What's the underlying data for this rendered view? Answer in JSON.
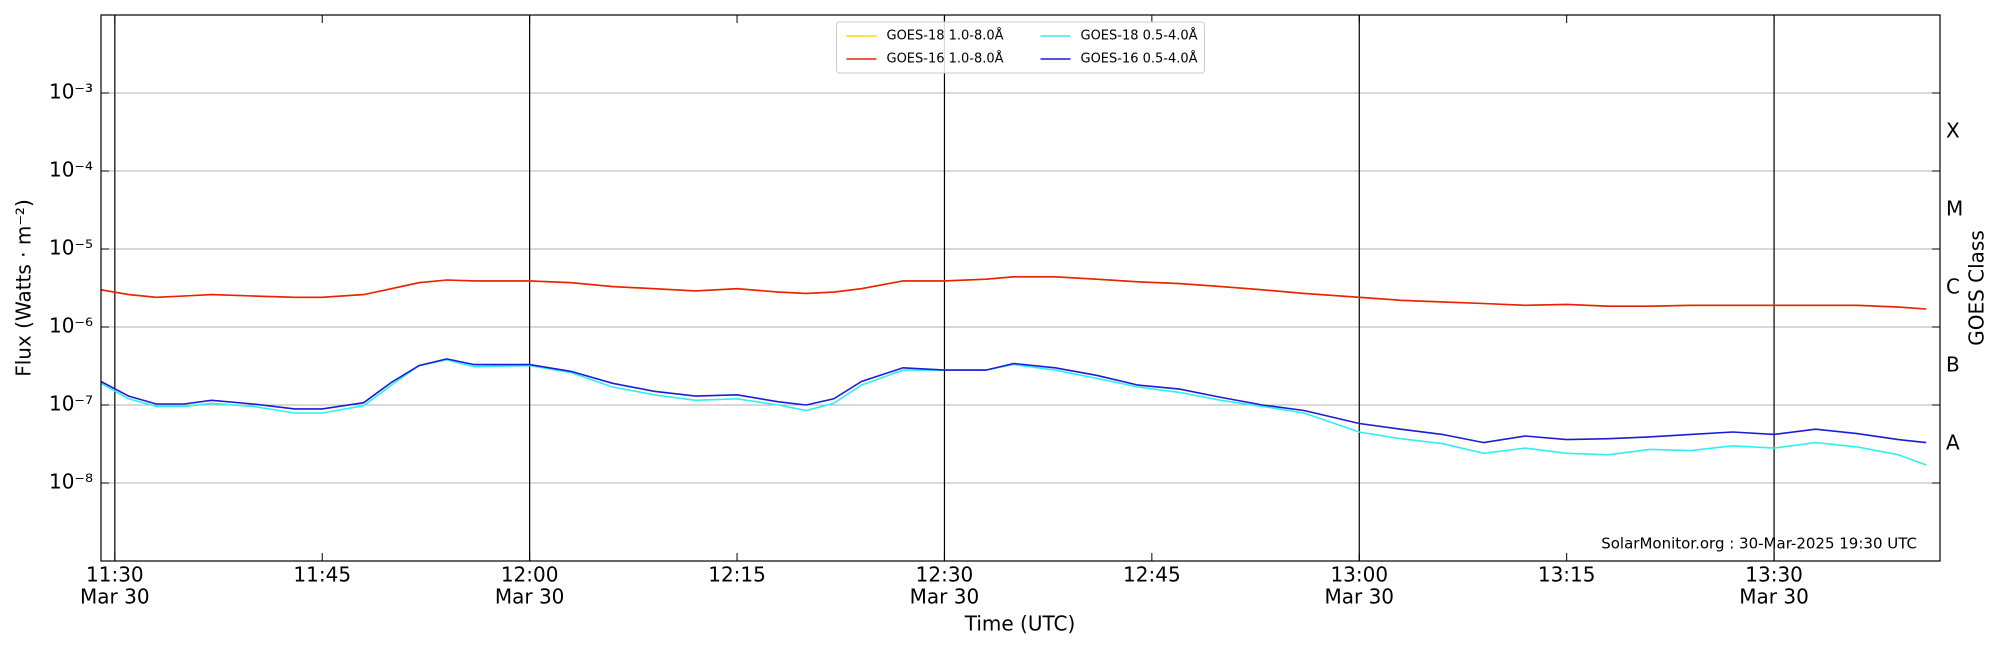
{
  "chart_data": {
    "type": "line",
    "xlabel": "Time (UTC)",
    "ylabel": "Flux (Watts · m⁻²)",
    "y2label": "GOES Class",
    "annotation": "SolarMonitor.org : 30-Mar-2025 19:30 UTC",
    "log_y": true,
    "grid": true,
    "legend": "upper center",
    "x": [
      "11:29",
      "11:31",
      "11:33",
      "11:35",
      "11:37",
      "11:40",
      "11:43",
      "11:45",
      "11:48",
      "11:50",
      "11:52",
      "11:54",
      "11:56",
      "12:00",
      "12:03",
      "12:06",
      "12:09",
      "12:12",
      "12:15",
      "12:18",
      "12:20",
      "12:22",
      "12:24",
      "12:27",
      "12:30",
      "12:33",
      "12:35",
      "12:38",
      "12:41",
      "12:44",
      "12:47",
      "12:50",
      "12:53",
      "12:56",
      "13:00",
      "13:03",
      "13:06",
      "13:09",
      "13:12",
      "13:15",
      "13:18",
      "13:21",
      "13:24",
      "13:27",
      "13:30",
      "13:33",
      "13:36",
      "13:39",
      "13:41"
    ],
    "xlim": [
      "11:29",
      "13:42"
    ],
    "xticks": [
      {
        "value": "11:30",
        "label": "11:30",
        "date": "Mar 30"
      },
      {
        "value": "11:45",
        "label": "11:45"
      },
      {
        "value": "12:00",
        "label": "12:00",
        "date": "Mar 30"
      },
      {
        "value": "12:15",
        "label": "12:15"
      },
      {
        "value": "12:30",
        "label": "12:30",
        "date": "Mar 30"
      },
      {
        "value": "12:45",
        "label": "12:45"
      },
      {
        "value": "13:00",
        "label": "13:00",
        "date": "Mar 30"
      },
      {
        "value": "13:15",
        "label": "13:15"
      },
      {
        "value": "13:30",
        "label": "13:30",
        "date": "Mar 30"
      }
    ],
    "ylim": [
      1e-09,
      0.01
    ],
    "yticks": [
      {
        "value": 1e-08,
        "label": "10⁻⁸"
      },
      {
        "value": 1e-07,
        "label": "10⁻⁷"
      },
      {
        "value": 1e-06,
        "label": "10⁻⁶"
      },
      {
        "value": 1e-05,
        "label": "10⁻⁵"
      },
      {
        "value": 0.0001,
        "label": "10⁻⁴"
      },
      {
        "value": 0.001,
        "label": "10⁻³"
      }
    ],
    "y2lim": [
      1e-09,
      0.01
    ],
    "y2ticks": [
      {
        "value": 3.16e-08,
        "label": "A"
      },
      {
        "value": 3.16e-07,
        "label": "B"
      },
      {
        "value": 3.16e-06,
        "label": "C"
      },
      {
        "value": 3.16e-05,
        "label": "M"
      },
      {
        "value": 0.000316,
        "label": "X"
      }
    ],
    "series": [
      {
        "name": "GOES-18 1.0-8.0Å",
        "color": "#ffd700",
        "values": [
          3e-06,
          2.6e-06,
          2.4e-06,
          2.5e-06,
          2.6e-06,
          2.5e-06,
          2.4e-06,
          2.4e-06,
          2.6e-06,
          3.1e-06,
          3.7e-06,
          4e-06,
          3.9e-06,
          3.9e-06,
          3.7e-06,
          3.3e-06,
          3.1e-06,
          2.9e-06,
          3.1e-06,
          2.8e-06,
          2.7e-06,
          2.8e-06,
          3.1e-06,
          3.9e-06,
          3.9e-06,
          4.1e-06,
          4.4e-06,
          4.4e-06,
          4.1e-06,
          3.8e-06,
          3.6e-06,
          3.3e-06,
          3e-06,
          2.7e-06,
          2.4e-06,
          2.2e-06,
          2.1e-06,
          2e-06,
          1.9e-06,
          1.95e-06,
          1.85e-06,
          1.85e-06,
          1.9e-06,
          1.9e-06,
          1.9e-06,
          1.9e-06,
          1.9e-06,
          1.8e-06,
          1.7e-06
        ]
      },
      {
        "name": "GOES-16 1.0-8.0Å",
        "color": "#e8200c",
        "values": [
          3e-06,
          2.6e-06,
          2.4e-06,
          2.5e-06,
          2.6e-06,
          2.5e-06,
          2.4e-06,
          2.4e-06,
          2.6e-06,
          3.1e-06,
          3.7e-06,
          4e-06,
          3.9e-06,
          3.9e-06,
          3.7e-06,
          3.3e-06,
          3.1e-06,
          2.9e-06,
          3.1e-06,
          2.8e-06,
          2.7e-06,
          2.8e-06,
          3.1e-06,
          3.9e-06,
          3.9e-06,
          4.1e-06,
          4.4e-06,
          4.4e-06,
          4.1e-06,
          3.8e-06,
          3.6e-06,
          3.3e-06,
          3e-06,
          2.7e-06,
          2.4e-06,
          2.2e-06,
          2.1e-06,
          2e-06,
          1.9e-06,
          1.95e-06,
          1.85e-06,
          1.85e-06,
          1.9e-06,
          1.9e-06,
          1.9e-06,
          1.9e-06,
          1.9e-06,
          1.8e-06,
          1.7e-06
        ]
      },
      {
        "name": "GOES-18 0.5-4.0Å",
        "color": "#2ef0f0",
        "values": [
          1.9e-07,
          1.2e-07,
          9.6e-08,
          9.6e-08,
          1.05e-07,
          9.6e-08,
          7.9e-08,
          7.9e-08,
          9.8e-08,
          1.8e-07,
          3.2e-07,
          3.8e-07,
          3.1e-07,
          3.2e-07,
          2.6e-07,
          1.7e-07,
          1.35e-07,
          1.15e-07,
          1.2e-07,
          1e-07,
          8.5e-08,
          1.05e-07,
          1.8e-07,
          2.8e-07,
          2.8e-07,
          2.8e-07,
          3.3e-07,
          2.8e-07,
          2.2e-07,
          1.7e-07,
          1.45e-07,
          1.15e-07,
          9.6e-08,
          7.9e-08,
          4.5e-08,
          3.7e-08,
          3.2e-08,
          2.4e-08,
          2.8e-08,
          2.4e-08,
          2.3e-08,
          2.7e-08,
          2.6e-08,
          3e-08,
          2.8e-08,
          3.3e-08,
          2.9e-08,
          2.3e-08,
          1.7e-08
        ]
      },
      {
        "name": "GOES-16 0.5-4.0Å",
        "color": "#1c1cd6",
        "values": [
          2e-07,
          1.3e-07,
          1.03e-07,
          1.03e-07,
          1.15e-07,
          1.03e-07,
          8.9e-08,
          8.9e-08,
          1.07e-07,
          1.95e-07,
          3.2e-07,
          3.9e-07,
          3.3e-07,
          3.3e-07,
          2.7e-07,
          1.9e-07,
          1.5e-07,
          1.3e-07,
          1.35e-07,
          1.1e-07,
          1e-07,
          1.2e-07,
          2e-07,
          3e-07,
          2.8e-07,
          2.8e-07,
          3.4e-07,
          3e-07,
          2.4e-07,
          1.8e-07,
          1.6e-07,
          1.25e-07,
          1e-07,
          8.5e-08,
          5.8e-08,
          4.9e-08,
          4.2e-08,
          3.3e-08,
          4e-08,
          3.6e-08,
          3.7e-08,
          3.9e-08,
          4.2e-08,
          4.5e-08,
          4.2e-08,
          4.9e-08,
          4.3e-08,
          3.6e-08,
          3.3e-08
        ]
      }
    ]
  }
}
